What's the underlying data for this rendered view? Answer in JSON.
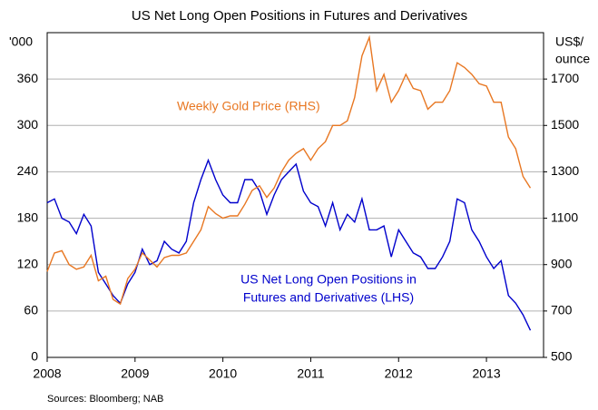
{
  "chart_data": {
    "type": "line",
    "title": "US Net Long Open Positions in Futures and Derivatives",
    "y_label": "'000",
    "y2_label": [
      "US$/",
      "ounce"
    ],
    "source": "Sources: Bloomberg; NAB",
    "annotations": [
      {
        "lines": [
          "Weekly Gold Price (RHS)"
        ],
        "color": "#e87722"
      },
      {
        "lines": [
          "US Net Long Open Positions in",
          "Futures and Derivatives (LHS)"
        ],
        "color": "#0000cc"
      }
    ],
    "xlim": [
      2008,
      2013.65
    ],
    "xticks": [
      2008,
      2009,
      2010,
      2011,
      2012,
      2013
    ],
    "ylim": [
      0,
      420
    ],
    "yticks": [
      0,
      60,
      120,
      180,
      240,
      300,
      360
    ],
    "y2lim": [
      500,
      1900
    ],
    "y2ticks": [
      500,
      700,
      900,
      1100,
      1300,
      1500,
      1700
    ],
    "grid": true,
    "x": [
      2008,
      2008.083,
      2008.167,
      2008.25,
      2008.333,
      2008.417,
      2008.5,
      2008.583,
      2008.667,
      2008.75,
      2008.833,
      2008.917,
      2009,
      2009.083,
      2009.167,
      2009.25,
      2009.333,
      2009.417,
      2009.5,
      2009.583,
      2009.667,
      2009.75,
      2009.833,
      2009.917,
      2010,
      2010.083,
      2010.167,
      2010.25,
      2010.333,
      2010.417,
      2010.5,
      2010.583,
      2010.667,
      2010.75,
      2010.833,
      2010.917,
      2011,
      2011.083,
      2011.167,
      2011.25,
      2011.333,
      2011.417,
      2011.5,
      2011.583,
      2011.667,
      2011.75,
      2011.833,
      2011.917,
      2012,
      2012.083,
      2012.167,
      2012.25,
      2012.333,
      2012.417,
      2012.5,
      2012.583,
      2012.667,
      2012.75,
      2012.833,
      2012.917,
      2013,
      2013.083,
      2013.167,
      2013.25,
      2013.333,
      2013.417,
      2013.5
    ],
    "series": [
      {
        "name": "US Net Long Open Positions in Futures and Derivatives (LHS)",
        "color": "#0000cc",
        "axis": "y",
        "values": [
          200,
          205,
          180,
          175,
          160,
          185,
          170,
          110,
          95,
          80,
          70,
          95,
          110,
          140,
          120,
          125,
          150,
          140,
          135,
          150,
          200,
          230,
          255,
          230,
          210,
          200,
          200,
          230,
          230,
          215,
          185,
          210,
          230,
          240,
          250,
          215,
          200,
          195,
          170,
          200,
          165,
          185,
          175,
          205,
          165,
          165,
          170,
          130,
          165,
          150,
          135,
          130,
          115,
          115,
          130,
          150,
          205,
          200,
          165,
          150,
          130,
          115,
          125,
          80,
          70,
          55,
          35
        ]
      },
      {
        "name": "Weekly Gold Price (RHS)",
        "color": "#e87722",
        "axis": "y2",
        "values": [
          870,
          950,
          960,
          900,
          880,
          890,
          940,
          830,
          850,
          750,
          730,
          840,
          880,
          950,
          920,
          890,
          930,
          940,
          940,
          950,
          1000,
          1050,
          1150,
          1120,
          1100,
          1110,
          1110,
          1160,
          1220,
          1240,
          1190,
          1230,
          1300,
          1350,
          1380,
          1400,
          1350,
          1400,
          1430,
          1500,
          1500,
          1520,
          1620,
          1800,
          1880,
          1650,
          1720,
          1600,
          1650,
          1720,
          1660,
          1650,
          1570,
          1600,
          1600,
          1650,
          1770,
          1750,
          1720,
          1680,
          1670,
          1600,
          1600,
          1450,
          1400,
          1280,
          1230
        ]
      }
    ]
  }
}
